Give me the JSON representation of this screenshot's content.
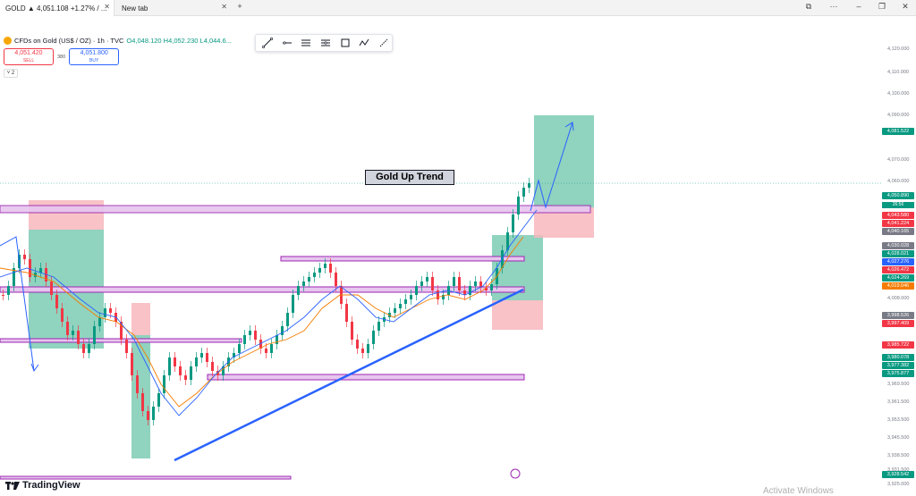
{
  "browser": {
    "tabs": [
      {
        "label": "GOLD ▲ 4,051.108 +1.27% / ..."
      },
      {
        "label": "New tab"
      }
    ],
    "new_tab_icon": "plus-icon"
  },
  "legend": {
    "symbol_name": "CFDs on Gold (US$ / OZ) · 1h · TVC",
    "ohlc": "O4,048.120 H4,052.230 L4,044.6..."
  },
  "trade": {
    "sell_price": "4,051.420",
    "sell_label": "SELL",
    "spread": "380",
    "buy_price": "4,051.800",
    "buy_label": "BUY"
  },
  "layers": {
    "label": "2"
  },
  "annotation": {
    "text": "Gold Up Trend"
  },
  "price_axis": {
    "ticks": [
      "4,120.000",
      "4,110.000",
      "4,100.000",
      "4,090.000",
      "4,070.000",
      "4,060.000",
      "4,008.000",
      "3,969.500",
      "3,961.500",
      "3,953.500",
      "3,945.500",
      "3,938.500",
      "3,931.500",
      "3,925.000"
    ],
    "labels": [
      {
        "text": "4,081.522",
        "color": "#089981"
      },
      {
        "text": "4,050.890",
        "color": "#089981"
      },
      {
        "text": "4,043.580",
        "color": "#f23645"
      },
      {
        "text": "4,041.224",
        "color": "#f23645"
      },
      {
        "text": "4,040.165",
        "color": "#787b86"
      },
      {
        "text": "4,030.028",
        "color": "#787b86"
      },
      {
        "text": "4,028.021",
        "color": "#089981"
      },
      {
        "text": "4,027.276",
        "color": "#2962ff"
      },
      {
        "text": "4,026.472",
        "color": "#f23645"
      },
      {
        "text": "4,024.269",
        "color": "#089981"
      },
      {
        "text": "4,019.046",
        "color": "#f57c00"
      },
      {
        "text": "3,998.526",
        "color": "#787b86"
      },
      {
        "text": "3,997.409",
        "color": "#f23645"
      },
      {
        "text": "3,985.722",
        "color": "#f23645"
      },
      {
        "text": "3,980.078",
        "color": "#089981"
      },
      {
        "text": "3,977.382",
        "color": "#089981"
      },
      {
        "text": "3,975.877",
        "color": "#089981"
      },
      {
        "text": "3,928.542",
        "color": "#089981"
      }
    ],
    "countdown": "26:56"
  },
  "branding": {
    "logo_text": "TradingView"
  },
  "watermark": {
    "text": "Activate Windows"
  }
}
